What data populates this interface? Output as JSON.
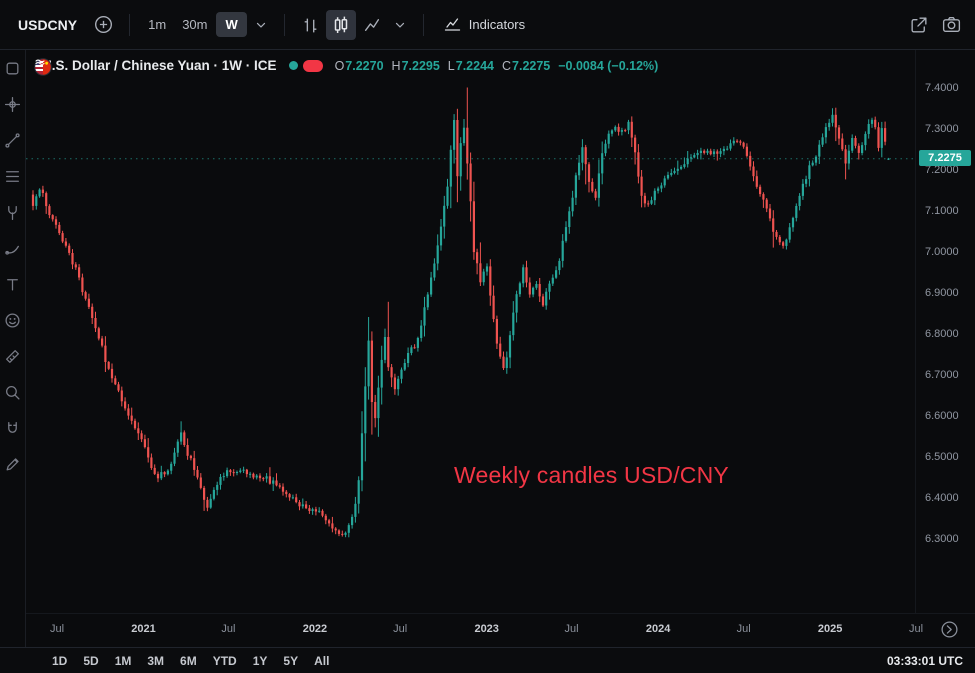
{
  "topbar": {
    "symbol": "USDCNY",
    "intervals": [
      {
        "label": "1m",
        "active": false
      },
      {
        "label": "30m",
        "active": false
      },
      {
        "label": "W",
        "active": true
      }
    ],
    "indicators_label": "Indicators",
    "icons": [
      "compare-add-icon",
      "interval-chevron-icon",
      "bar-chart-type-icon",
      "candle-chart-type-icon",
      "area-chart-type-icon",
      "chart-type-chevron-icon",
      "indicators-icon",
      "share-icon",
      "camera-icon"
    ]
  },
  "left_toolbar": {
    "tools": [
      "toolbox",
      "crosshair",
      "trend-line",
      "fib-retracement",
      "pitchfork",
      "brush",
      "text",
      "emoji",
      "ruler",
      "zoom",
      "magnet",
      "pencil"
    ]
  },
  "legend": {
    "title": "U.S. Dollar / Chinese Yuan · 1W · ICE",
    "status_icons": [
      "market-status-icon",
      "delayed-data-icon"
    ],
    "ohlc": {
      "open_label": "O",
      "open": "7.2270",
      "high_label": "H",
      "high": "7.2295",
      "low_label": "L",
      "low": "7.2244",
      "close_label": "C",
      "close": "7.2275",
      "change": "−0.0084 (−0.12%)"
    }
  },
  "annotation": {
    "text": "Weekly candles USD/CNY",
    "color": "#f23645"
  },
  "price_axis": {
    "ticks": [
      "7.4000",
      "7.3000",
      "7.2000",
      "7.1000",
      "7.0000",
      "6.9000",
      "6.8000",
      "6.7000",
      "6.6000",
      "6.5000",
      "6.4000",
      "6.3000"
    ],
    "last_price_label": "7.2275"
  },
  "footer": {
    "ranges": [
      "1D",
      "5D",
      "1M",
      "3M",
      "6M",
      "YTD",
      "1Y",
      "5Y",
      "All"
    ],
    "clock": "03:33:01 UTC"
  },
  "chart_data": {
    "type": "candlestick",
    "title": "U.S. Dollar / Chinese Yuan",
    "symbol": "USDCNY",
    "timeframe": "1W",
    "exchange": "ICE",
    "up_color": "#26a69a",
    "down_color": "#ef5350",
    "price_line": 7.2275,
    "y_ticks": [
      7.4,
      7.3,
      7.2,
      7.1,
      7.0,
      6.9,
      6.8,
      6.7,
      6.6,
      6.5,
      6.4,
      6.3
    ],
    "y_range": [
      6.12,
      7.49
    ],
    "grid": false,
    "weeks_total": 261,
    "x_ticks": [
      {
        "label": "Jul",
        "week": 7.3,
        "major": false
      },
      {
        "label": "2021",
        "week": 33.6,
        "major": true
      },
      {
        "label": "Jul",
        "week": 59.4,
        "major": false
      },
      {
        "label": "2022",
        "week": 85.7,
        "major": true
      },
      {
        "label": "Jul",
        "week": 111.6,
        "major": false
      },
      {
        "label": "2023",
        "week": 137.9,
        "major": true
      },
      {
        "label": "Jul",
        "week": 163.7,
        "major": false
      },
      {
        "label": "2024",
        "week": 190.0,
        "major": true
      },
      {
        "label": "Jul",
        "week": 216.0,
        "major": false
      },
      {
        "label": "2025",
        "week": 242.3,
        "major": true
      },
      {
        "label": "Jul",
        "week": 268.4,
        "major": false
      }
    ],
    "last_candle": {
      "open": 7.227,
      "high": 7.2295,
      "low": 7.2244,
      "close": 7.2275,
      "change": -0.0084,
      "change_pct": -0.12
    },
    "trend_anchors": [
      [
        0,
        7.12
      ],
      [
        2,
        7.16
      ],
      [
        5,
        7.09
      ],
      [
        8,
        7.05
      ],
      [
        11,
        7.0
      ],
      [
        15,
        6.91
      ],
      [
        19,
        6.82
      ],
      [
        23,
        6.71
      ],
      [
        27,
        6.64
      ],
      [
        30,
        6.59
      ],
      [
        33,
        6.54
      ],
      [
        36,
        6.48
      ],
      [
        38,
        6.45
      ],
      [
        41,
        6.47
      ],
      [
        43,
        6.51
      ],
      [
        45,
        6.56
      ],
      [
        47,
        6.51
      ],
      [
        50,
        6.45
      ],
      [
        52,
        6.39
      ],
      [
        53,
        6.37
      ],
      [
        55,
        6.42
      ],
      [
        58,
        6.46
      ],
      [
        62,
        6.47
      ],
      [
        66,
        6.46
      ],
      [
        70,
        6.45
      ],
      [
        74,
        6.43
      ],
      [
        78,
        6.4
      ],
      [
        82,
        6.38
      ],
      [
        86,
        6.37
      ],
      [
        89,
        6.35
      ],
      [
        92,
        6.32
      ],
      [
        94,
        6.31
      ],
      [
        96,
        6.33
      ],
      [
        98,
        6.38
      ],
      [
        99,
        6.44
      ],
      [
        100,
        6.55
      ],
      [
        101,
        6.68
      ],
      [
        102,
        6.79
      ],
      [
        103,
        6.64
      ],
      [
        104,
        6.59
      ],
      [
        105,
        6.67
      ],
      [
        106,
        6.74
      ],
      [
        107,
        6.79
      ],
      [
        108,
        6.72
      ],
      [
        110,
        6.67
      ],
      [
        112,
        6.71
      ],
      [
        114,
        6.75
      ],
      [
        116,
        6.77
      ],
      [
        118,
        6.82
      ],
      [
        120,
        6.9
      ],
      [
        122,
        6.97
      ],
      [
        124,
        7.07
      ],
      [
        126,
        7.16
      ],
      [
        127,
        7.25
      ],
      [
        128,
        7.32
      ],
      [
        129,
        7.18
      ],
      [
        130,
        7.26
      ],
      [
        131,
        7.3
      ],
      [
        132,
        7.22
      ],
      [
        133,
        7.12
      ],
      [
        134,
        7.0
      ],
      [
        136,
        6.93
      ],
      [
        138,
        6.96
      ],
      [
        139,
        6.89
      ],
      [
        140,
        6.84
      ],
      [
        141,
        6.77
      ],
      [
        143,
        6.71
      ],
      [
        144,
        6.74
      ],
      [
        145,
        6.8
      ],
      [
        147,
        6.9
      ],
      [
        149,
        6.96
      ],
      [
        151,
        6.89
      ],
      [
        153,
        6.92
      ],
      [
        155,
        6.87
      ],
      [
        157,
        6.93
      ],
      [
        159,
        6.96
      ],
      [
        160,
        6.98
      ],
      [
        162,
        7.06
      ],
      [
        164,
        7.14
      ],
      [
        166,
        7.22
      ],
      [
        167,
        7.25
      ],
      [
        169,
        7.17
      ],
      [
        171,
        7.14
      ],
      [
        173,
        7.24
      ],
      [
        175,
        7.29
      ],
      [
        177,
        7.31
      ],
      [
        179,
        7.29
      ],
      [
        181,
        7.32
      ],
      [
        183,
        7.24
      ],
      [
        185,
        7.13
      ],
      [
        187,
        7.11
      ],
      [
        189,
        7.15
      ],
      [
        191,
        7.17
      ],
      [
        194,
        7.19
      ],
      [
        197,
        7.21
      ],
      [
        200,
        7.23
      ],
      [
        203,
        7.24
      ],
      [
        206,
        7.24
      ],
      [
        209,
        7.25
      ],
      [
        212,
        7.26
      ],
      [
        214,
        7.27
      ],
      [
        216,
        7.25
      ],
      [
        218,
        7.21
      ],
      [
        220,
        7.16
      ],
      [
        222,
        7.12
      ],
      [
        224,
        7.08
      ],
      [
        226,
        7.03
      ],
      [
        228,
        7.01
      ],
      [
        230,
        7.06
      ],
      [
        232,
        7.11
      ],
      [
        234,
        7.16
      ],
      [
        236,
        7.21
      ],
      [
        238,
        7.24
      ],
      [
        240,
        7.28
      ],
      [
        241,
        7.3
      ],
      [
        243,
        7.33
      ],
      [
        245,
        7.28
      ],
      [
        247,
        7.22
      ],
      [
        249,
        7.27
      ],
      [
        251,
        7.24
      ],
      [
        253,
        7.28
      ],
      [
        255,
        7.33
      ],
      [
        256,
        7.3
      ],
      [
        257,
        7.26
      ],
      [
        258,
        7.3
      ],
      [
        259,
        7.27
      ],
      [
        260,
        7.2275
      ]
    ],
    "annotation_text": "Weekly candles USD/CNY"
  }
}
